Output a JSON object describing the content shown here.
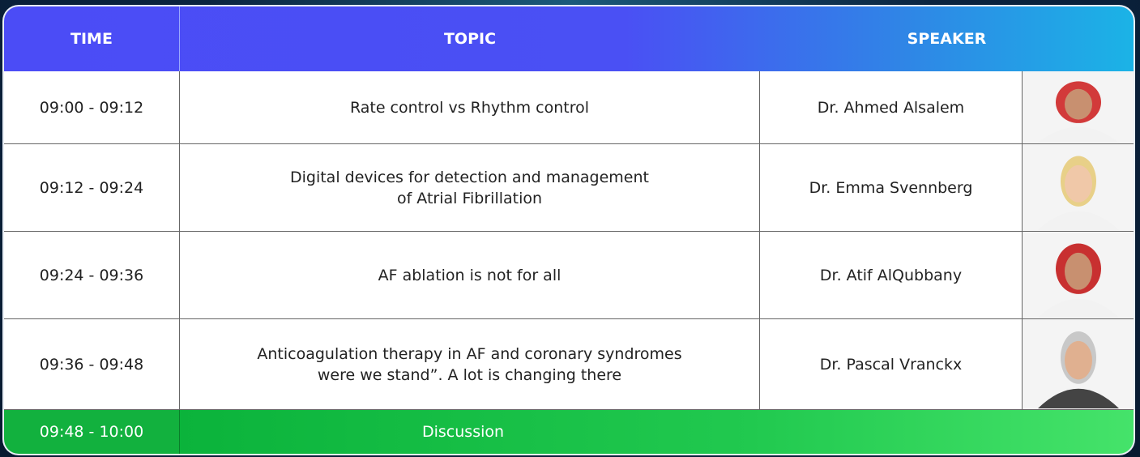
{
  "header": {
    "time": "TIME",
    "topic": "TOPIC",
    "speaker": "SPEAKER"
  },
  "rows": [
    {
      "time": "09:00 - 09:12",
      "topic": [
        "Rate control vs Rhythm control"
      ],
      "speaker": "Dr. Ahmed Alsalem"
    },
    {
      "time": "09:12 - 09:24",
      "topic": [
        "Digital devices for detection and management",
        "of Atrial Fibrillation"
      ],
      "speaker": "Dr. Emma Svennberg"
    },
    {
      "time": "09:24 - 09:36",
      "topic": [
        "AF ablation is not for all"
      ],
      "speaker": "Dr. Atif AlQubbany"
    },
    {
      "time": "09:36 - 09:48",
      "topic": [
        "Anticoagulation therapy in AF and coronary syndromes",
        "were we stand”. A lot is changing there"
      ],
      "speaker": "Dr. Pascal Vranckx"
    }
  ],
  "discussion": {
    "time": "09:48 - 10:00",
    "topic": "Discussion"
  }
}
